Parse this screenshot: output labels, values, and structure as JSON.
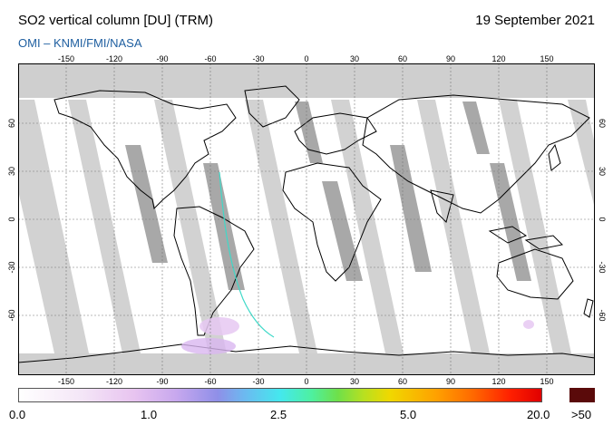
{
  "header": {
    "title": "SO2 vertical column [DU] (TRM)",
    "date": "19 September 2021",
    "credit": "OMI  –  KNMI/FMI/NASA"
  },
  "map": {
    "lon_ticks": [
      "-150",
      "-120",
      "-90",
      "-60",
      "-30",
      "0",
      "30",
      "60",
      "90",
      "120",
      "150"
    ],
    "lat_ticks": [
      "60",
      "30",
      "0",
      "-30",
      "-60"
    ]
  },
  "colorbar": {
    "labels": [
      "0.0",
      "1.0",
      "2.5",
      "5.0",
      "20.0"
    ],
    "over_label": ">50",
    "over_color": "#5a0a0a"
  }
}
